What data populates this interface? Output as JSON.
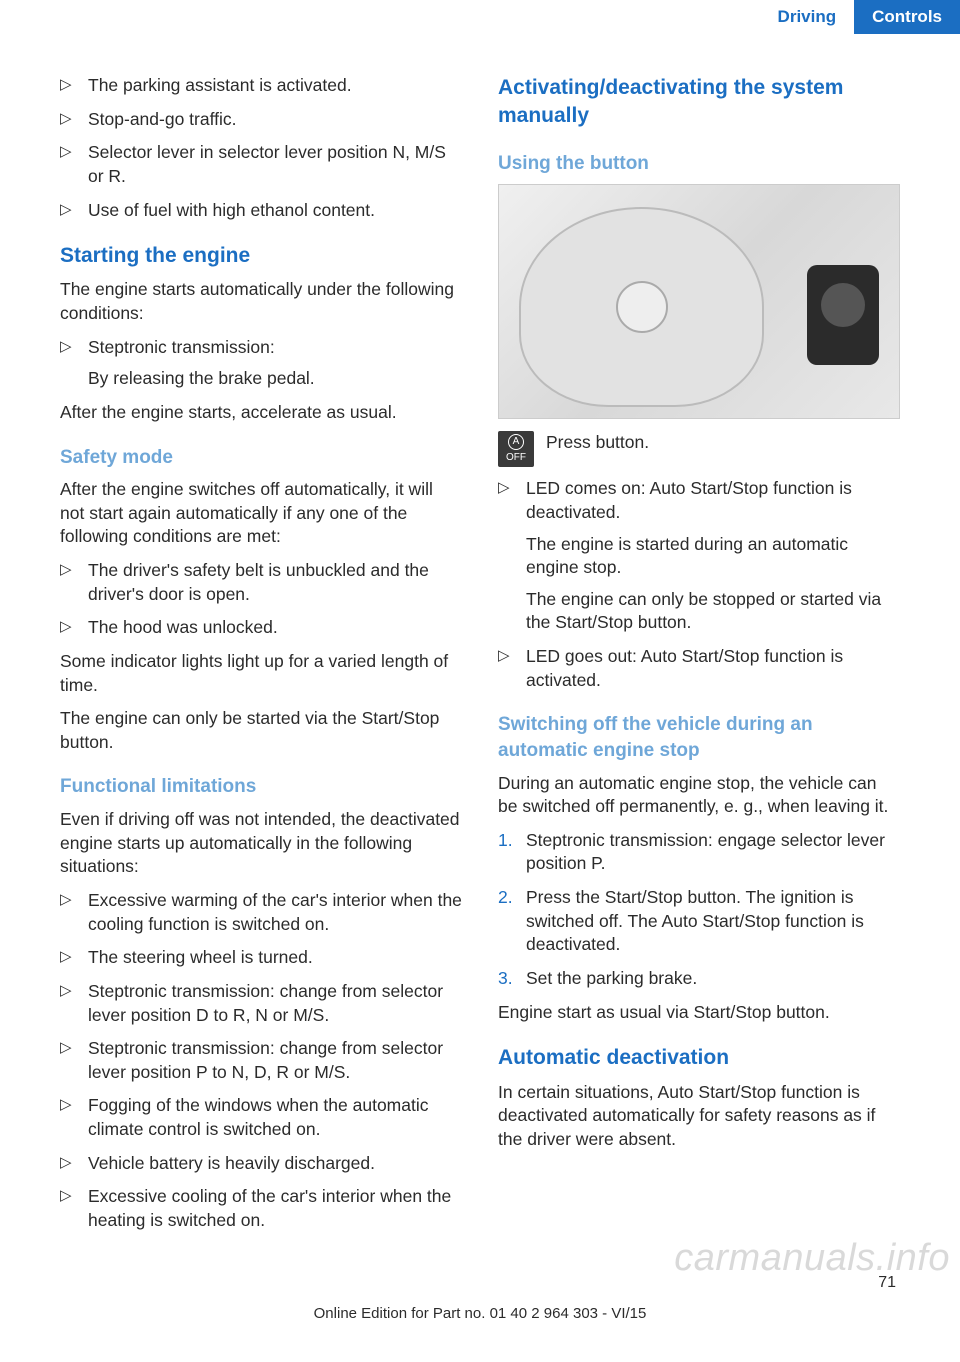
{
  "header": {
    "tab_driving": "Driving",
    "tab_controls": "Controls"
  },
  "left": {
    "intro_bullets": [
      "The parking assistant is activated.",
      "Stop-and-go traffic.",
      "Selector lever in selector lever position N, M/S or R.",
      "Use of fuel with high ethanol content."
    ],
    "h_start": "Starting the engine",
    "start_p1": "The engine starts automatically under the fol­lowing conditions:",
    "start_bullets": [
      "Steptronic transmission:"
    ],
    "start_sub": "By releasing the brake pedal.",
    "start_p2": "After the engine starts, accelerate as usual.",
    "h_safety": "Safety mode",
    "safety_p1": "After the engine switches off automatically, it will not start again automatically if any one of the following conditions are met:",
    "safety_bullets": [
      "The driver's safety belt is unbuckled and the driver's door is open.",
      "The hood was unlocked."
    ],
    "safety_p2": "Some indicator lights light up for a varied length of time.",
    "safety_p3": "The engine can only be started via the Start/Stop button.",
    "h_func": "Functional limitations",
    "func_p1": "Even if driving off was not intended, the deacti­vated engine starts up automatically in the fol­lowing situations:",
    "func_bullets": [
      "Excessive warming of the car's interior when the cooling function is switched on.",
      "The steering wheel is turned.",
      "Steptronic transmission: change from se­lector lever position D to R, N or M/S.",
      "Steptronic transmission: change from se­lector lever position P to N, D, R or M/S.",
      "Fogging of the windows when the auto­matic climate control is switched on.",
      "Vehicle battery is heavily discharged.",
      "Excessive cooling of the car's interior when the heating is switched on."
    ]
  },
  "right": {
    "h_act": "Activating/deactivating the system manually",
    "h_using": "Using the button",
    "press_label": "Press button.",
    "icon_letter": "A",
    "icon_off": "OFF",
    "led_bullets": [
      {
        "main": "LED comes on: Auto Start/Stop function is deactivated.",
        "extra1": "The engine is started during an automatic engine stop.",
        "extra2": "The engine can only be stopped or started via the Start/Stop button."
      },
      {
        "main": "LED goes out: Auto Start/Stop function is activated."
      }
    ],
    "h_switch": "Switching off the vehicle during an automatic engine stop",
    "switch_p1": "During an automatic engine stop, the vehicle can be switched off permanently, e. g., when leaving it.",
    "switch_steps": [
      "Steptronic transmission: engage selector lever position P.",
      "Press the Start/Stop button. The ignition is switched off. The Auto Start/Stop function is deactivated.",
      "Set the parking brake."
    ],
    "switch_p2": "Engine start as usual via Start/Stop button.",
    "h_auto": "Automatic deactivation",
    "auto_p1": "In certain situations, Auto Start/Stop function is deactivated automatically for safety reasons as if the driver were absent."
  },
  "footer": {
    "page": "71",
    "watermark": "carmanuals.info",
    "line": "Online Edition for Part no. 01 40 2 964 303 - VI/15"
  },
  "colors": {
    "brand_blue": "#1b6ec2",
    "sub_blue": "#6fa7d8",
    "text": "#2b2b2b",
    "bg": "#ffffff"
  }
}
